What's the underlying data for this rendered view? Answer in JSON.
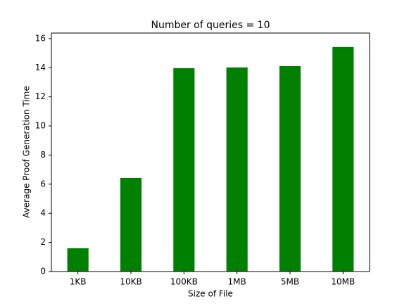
{
  "chart_data": {
    "type": "bar",
    "title": "Number of queries = 10",
    "x_label": "Size of File",
    "y_label": "Average Proof Generation Time",
    "categories": [
      "1KB",
      "10KB",
      "100KB",
      "1MB",
      "5MB",
      "10MB"
    ],
    "values": [
      1.6,
      6.43,
      13.97,
      14.02,
      14.11,
      15.42
    ],
    "color": "#008000",
    "ylim": [
      0,
      16.38
    ],
    "yticks": [
      0,
      2,
      4,
      6,
      8,
      10,
      12,
      14,
      16
    ],
    "grid": false
  }
}
